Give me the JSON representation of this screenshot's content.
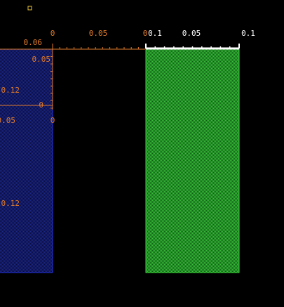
{
  "orange_axis": {
    "x_labels": [
      "0",
      "0.05",
      "0"
    ],
    "y_labels": [
      "0.06",
      "0.05",
      "0.12",
      "0"
    ]
  },
  "lower_labels": [
    "0.05",
    "0",
    "0.12"
  ],
  "white_axis": {
    "x_labels": [
      "0.1",
      "0.05",
      "0.1"
    ]
  }
}
